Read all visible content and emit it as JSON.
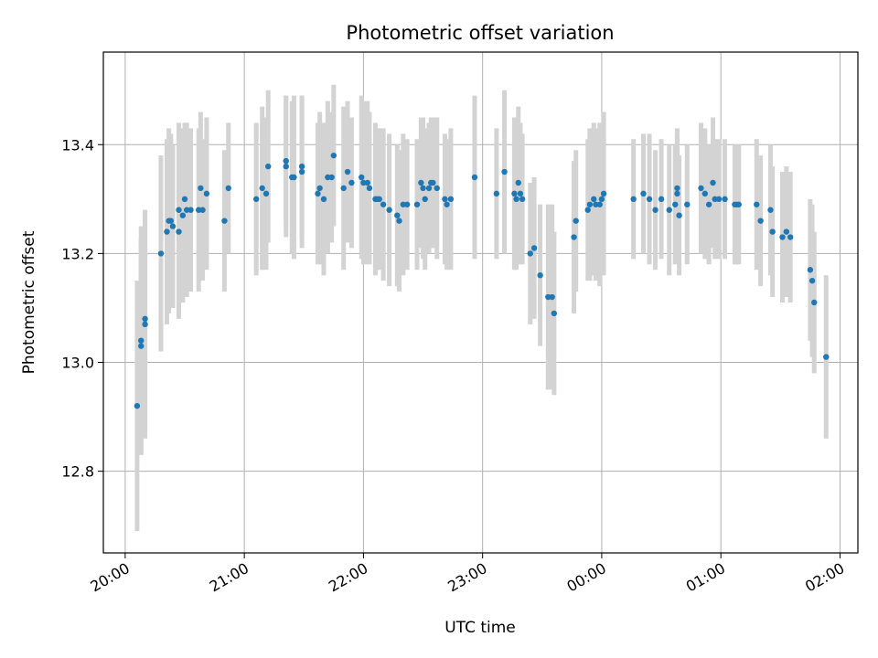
{
  "chart_data": {
    "type": "scatter",
    "title": "Photometric offset variation",
    "xlabel": "UTC time",
    "ylabel": "Photometric offset",
    "x_unit": "UTC",
    "x_range": [
      "19:49",
      "02:09"
    ],
    "ylim": [
      12.65,
      13.57
    ],
    "grid": true,
    "x_ticks": [
      "20:00",
      "21:00",
      "22:00",
      "23:00",
      "00:00",
      "01:00",
      "02:00"
    ],
    "y_ticks": [
      "12.8",
      "13.0",
      "13.2",
      "13.4"
    ],
    "y_tick_values": [
      12.8,
      13.0,
      13.2,
      13.4
    ],
    "colors": {
      "point": "#1f77b4",
      "errorbar": "#d3d3d3",
      "grid": "#b0b0b0"
    },
    "points": [
      {
        "x": "20:06",
        "y": 12.92,
        "err": 0.23
      },
      {
        "x": "20:08",
        "y": 13.04,
        "err": 0.21
      },
      {
        "x": "20:08",
        "y": 13.03,
        "err": 0.2
      },
      {
        "x": "20:10",
        "y": 13.08,
        "err": 0.2
      },
      {
        "x": "20:10",
        "y": 13.07,
        "err": 0.21
      },
      {
        "x": "20:18",
        "y": 13.2,
        "err": 0.18
      },
      {
        "x": "20:21",
        "y": 13.24,
        "err": 0.17
      },
      {
        "x": "20:22",
        "y": 13.26,
        "err": 0.17
      },
      {
        "x": "20:23",
        "y": 13.26,
        "err": 0.16
      },
      {
        "x": "20:24",
        "y": 13.25,
        "err": 0.15
      },
      {
        "x": "20:27",
        "y": 13.24,
        "err": 0.16
      },
      {
        "x": "20:27",
        "y": 13.28,
        "err": 0.16
      },
      {
        "x": "20:29",
        "y": 13.27,
        "err": 0.16
      },
      {
        "x": "20:30",
        "y": 13.3,
        "err": 0.14
      },
      {
        "x": "20:31",
        "y": 13.28,
        "err": 0.16
      },
      {
        "x": "20:33",
        "y": 13.28,
        "err": 0.15
      },
      {
        "x": "20:37",
        "y": 13.28,
        "err": 0.15
      },
      {
        "x": "20:38",
        "y": 13.32,
        "err": 0.14
      },
      {
        "x": "20:39",
        "y": 13.28,
        "err": 0.13
      },
      {
        "x": "20:41",
        "y": 13.31,
        "err": 0.14
      },
      {
        "x": "20:50",
        "y": 13.26,
        "err": 0.13
      },
      {
        "x": "20:52",
        "y": 13.32,
        "err": 0.12
      },
      {
        "x": "21:06",
        "y": 13.3,
        "err": 0.14
      },
      {
        "x": "21:09",
        "y": 13.32,
        "err": 0.15
      },
      {
        "x": "21:11",
        "y": 13.31,
        "err": 0.14
      },
      {
        "x": "21:12",
        "y": 13.36,
        "err": 0.14
      },
      {
        "x": "21:21",
        "y": 13.37,
        "err": 0.12
      },
      {
        "x": "21:21",
        "y": 13.36,
        "err": 0.13
      },
      {
        "x": "21:24",
        "y": 13.34,
        "err": 0.14
      },
      {
        "x": "21:25",
        "y": 13.34,
        "err": 0.15
      },
      {
        "x": "21:29",
        "y": 13.36,
        "err": 0.13
      },
      {
        "x": "21:29",
        "y": 13.35,
        "err": 0.14
      },
      {
        "x": "21:37",
        "y": 13.31,
        "err": 0.13
      },
      {
        "x": "21:38",
        "y": 13.32,
        "err": 0.14
      },
      {
        "x": "21:40",
        "y": 13.3,
        "err": 0.14
      },
      {
        "x": "21:42",
        "y": 13.34,
        "err": 0.14
      },
      {
        "x": "21:44",
        "y": 13.34,
        "err": 0.12
      },
      {
        "x": "21:45",
        "y": 13.38,
        "err": 0.13
      },
      {
        "x": "21:50",
        "y": 13.32,
        "err": 0.15
      },
      {
        "x": "21:52",
        "y": 13.35,
        "err": 0.13
      },
      {
        "x": "21:54",
        "y": 13.33,
        "err": 0.12
      },
      {
        "x": "21:59",
        "y": 13.34,
        "err": 0.15
      },
      {
        "x": "22:00",
        "y": 13.33,
        "err": 0.15
      },
      {
        "x": "22:02",
        "y": 13.33,
        "err": 0.15
      },
      {
        "x": "22:03",
        "y": 13.32,
        "err": 0.14
      },
      {
        "x": "22:06",
        "y": 13.3,
        "err": 0.14
      },
      {
        "x": "22:07",
        "y": 13.3,
        "err": 0.13
      },
      {
        "x": "22:08",
        "y": 13.3,
        "err": 0.13
      },
      {
        "x": "22:10",
        "y": 13.29,
        "err": 0.14
      },
      {
        "x": "22:13",
        "y": 13.28,
        "err": 0.14
      },
      {
        "x": "22:17",
        "y": 13.27,
        "err": 0.13
      },
      {
        "x": "22:18",
        "y": 13.26,
        "err": 0.13
      },
      {
        "x": "22:20",
        "y": 13.29,
        "err": 0.13
      },
      {
        "x": "22:22",
        "y": 13.29,
        "err": 0.12
      },
      {
        "x": "22:27",
        "y": 13.29,
        "err": 0.12
      },
      {
        "x": "22:29",
        "y": 13.33,
        "err": 0.12
      },
      {
        "x": "22:30",
        "y": 13.32,
        "err": 0.13
      },
      {
        "x": "22:31",
        "y": 13.3,
        "err": 0.13
      },
      {
        "x": "22:33",
        "y": 13.32,
        "err": 0.12
      },
      {
        "x": "22:34",
        "y": 13.33,
        "err": 0.12
      },
      {
        "x": "22:35",
        "y": 13.33,
        "err": 0.12
      },
      {
        "x": "22:37",
        "y": 13.32,
        "err": 0.13
      },
      {
        "x": "22:41",
        "y": 13.3,
        "err": 0.12
      },
      {
        "x": "22:42",
        "y": 13.29,
        "err": 0.12
      },
      {
        "x": "22:44",
        "y": 13.3,
        "err": 0.13
      },
      {
        "x": "22:56",
        "y": 13.34,
        "err": 0.15
      },
      {
        "x": "23:07",
        "y": 13.31,
        "err": 0.12
      },
      {
        "x": "23:11",
        "y": 13.35,
        "err": 0.15
      },
      {
        "x": "23:16",
        "y": 13.31,
        "err": 0.14
      },
      {
        "x": "23:17",
        "y": 13.3,
        "err": 0.13
      },
      {
        "x": "23:18",
        "y": 13.33,
        "err": 0.14
      },
      {
        "x": "23:19",
        "y": 13.31,
        "err": 0.13
      },
      {
        "x": "23:20",
        "y": 13.3,
        "err": 0.12
      },
      {
        "x": "23:24",
        "y": 13.2,
        "err": 0.13
      },
      {
        "x": "23:26",
        "y": 13.21,
        "err": 0.13
      },
      {
        "x": "23:29",
        "y": 13.16,
        "err": 0.13
      },
      {
        "x": "23:33",
        "y": 13.12,
        "err": 0.17
      },
      {
        "x": "23:35",
        "y": 13.12,
        "err": 0.17
      },
      {
        "x": "23:36",
        "y": 13.09,
        "err": 0.15
      },
      {
        "x": "23:46",
        "y": 13.23,
        "err": 0.14
      },
      {
        "x": "23:47",
        "y": 13.26,
        "err": 0.13
      },
      {
        "x": "23:53",
        "y": 13.28,
        "err": 0.13
      },
      {
        "x": "23:54",
        "y": 13.29,
        "err": 0.14
      },
      {
        "x": "23:56",
        "y": 13.3,
        "err": 0.14
      },
      {
        "x": "23:57",
        "y": 13.29,
        "err": 0.14
      },
      {
        "x": "23:59",
        "y": 13.29,
        "err": 0.15
      },
      {
        "x": "00:00",
        "y": 13.3,
        "err": 0.14
      },
      {
        "x": "00:01",
        "y": 13.31,
        "err": 0.15
      },
      {
        "x": "00:16",
        "y": 13.3,
        "err": 0.11
      },
      {
        "x": "00:21",
        "y": 13.31,
        "err": 0.11
      },
      {
        "x": "00:24",
        "y": 13.3,
        "err": 0.12
      },
      {
        "x": "00:27",
        "y": 13.28,
        "err": 0.11
      },
      {
        "x": "00:30",
        "y": 13.3,
        "err": 0.11
      },
      {
        "x": "00:34",
        "y": 13.28,
        "err": 0.12
      },
      {
        "x": "00:37",
        "y": 13.29,
        "err": 0.11
      },
      {
        "x": "00:38",
        "y": 13.31,
        "err": 0.11
      },
      {
        "x": "00:38",
        "y": 13.32,
        "err": 0.11
      },
      {
        "x": "00:39",
        "y": 13.27,
        "err": 0.11
      },
      {
        "x": "00:43",
        "y": 13.29,
        "err": 0.11
      },
      {
        "x": "00:50",
        "y": 13.32,
        "err": 0.12
      },
      {
        "x": "00:52",
        "y": 13.31,
        "err": 0.12
      },
      {
        "x": "00:54",
        "y": 13.29,
        "err": 0.11
      },
      {
        "x": "00:56",
        "y": 13.33,
        "err": 0.12
      },
      {
        "x": "00:57",
        "y": 13.3,
        "err": 0.11
      },
      {
        "x": "00:59",
        "y": 13.3,
        "err": 0.11
      },
      {
        "x": "01:02",
        "y": 13.3,
        "err": 0.11
      },
      {
        "x": "01:07",
        "y": 13.29,
        "err": 0.11
      },
      {
        "x": "01:08",
        "y": 13.29,
        "err": 0.11
      },
      {
        "x": "01:09",
        "y": 13.29,
        "err": 0.11
      },
      {
        "x": "01:18",
        "y": 13.29,
        "err": 0.12
      },
      {
        "x": "01:20",
        "y": 13.26,
        "err": 0.12
      },
      {
        "x": "01:25",
        "y": 13.28,
        "err": 0.12
      },
      {
        "x": "01:26",
        "y": 13.24,
        "err": 0.12
      },
      {
        "x": "01:31",
        "y": 13.23,
        "err": 0.12
      },
      {
        "x": "01:33",
        "y": 13.24,
        "err": 0.12
      },
      {
        "x": "01:35",
        "y": 13.23,
        "err": 0.12
      },
      {
        "x": "01:45",
        "y": 13.17,
        "err": 0.13
      },
      {
        "x": "01:46",
        "y": 13.15,
        "err": 0.14
      },
      {
        "x": "01:47",
        "y": 13.11,
        "err": 0.13
      },
      {
        "x": "01:53",
        "y": 13.01,
        "err": 0.15
      }
    ]
  }
}
